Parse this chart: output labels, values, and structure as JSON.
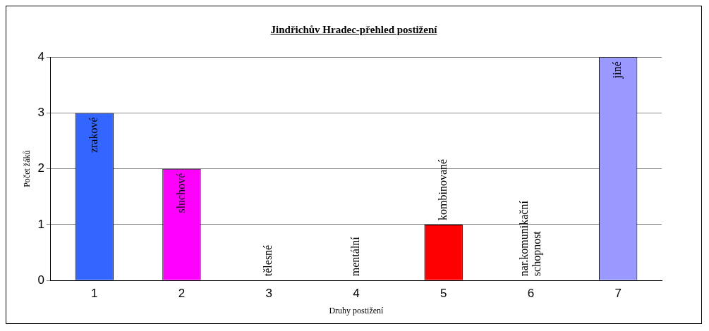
{
  "chart_data": {
    "type": "bar",
    "title": "Jindřichův Hradec-přehled postižení",
    "xlabel": "Druhy postižení",
    "ylabel": "Počet žáků",
    "categories": [
      "1",
      "2",
      "3",
      "4",
      "5",
      "6",
      "7"
    ],
    "values": [
      3,
      2,
      0,
      0,
      1,
      0,
      4
    ],
    "colors": [
      "#3366ff",
      "#ff00ff",
      "#cccc77",
      "#00cc00",
      "#ff0000",
      "#9966cc",
      "#9999ff"
    ],
    "ylim": [
      0,
      4
    ],
    "yticks": [
      0,
      1,
      2,
      3,
      4
    ],
    "grid": "y",
    "legend": false,
    "annotations": [
      {
        "text": "zrakové",
        "x": "1",
        "y": 3
      },
      {
        "text": "sluchové",
        "x": "2",
        "y": 2
      },
      {
        "text": "tělesné",
        "x": "3",
        "y": 0
      },
      {
        "text": "mentální",
        "x": "4",
        "y": 0
      },
      {
        "text": "kombinované",
        "x": "5",
        "y": 1
      },
      {
        "text": "nar.komunikační schopnost",
        "x": "6",
        "y": 0
      },
      {
        "text": "jiné",
        "x": "7",
        "y": 4
      }
    ]
  }
}
